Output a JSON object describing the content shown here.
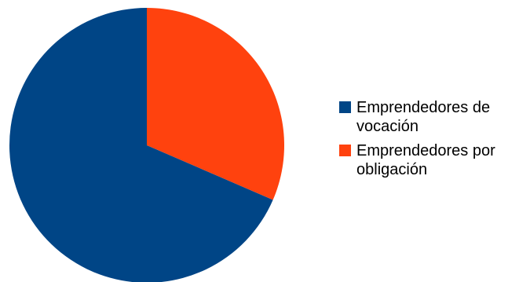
{
  "chart_data": {
    "type": "pie",
    "title": "",
    "legend_position": "right",
    "slices": [
      {
        "label": "Emprendedores de vocación",
        "value": 68.5,
        "color": "#004586"
      },
      {
        "label": "Emprendedores por obligación",
        "value": 31.5,
        "color": "#ff420e"
      }
    ]
  }
}
